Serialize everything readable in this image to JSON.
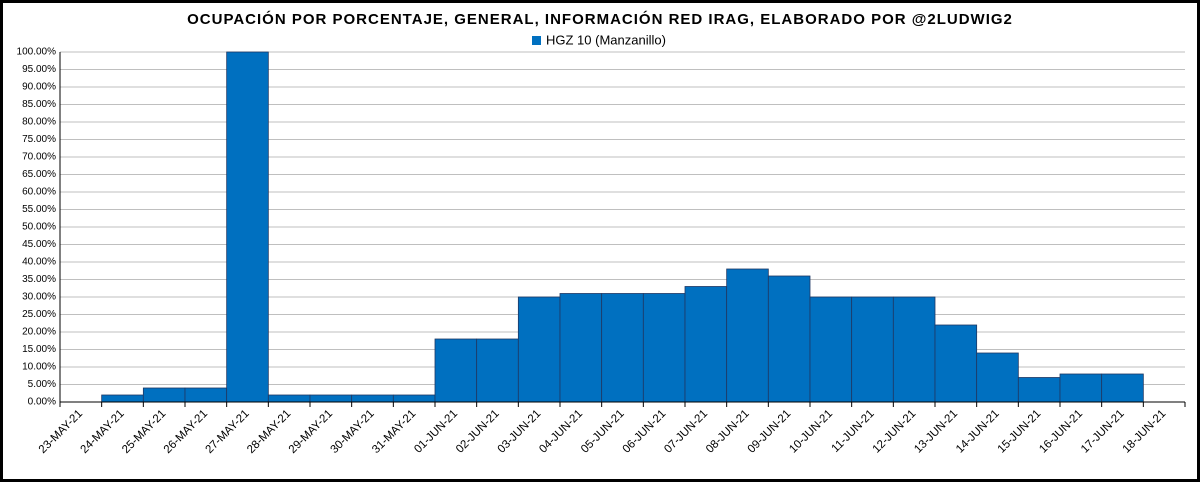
{
  "chart_data": {
    "type": "bar",
    "title": "OCUPACIÓN POR PORCENTAJE, GENERAL, INFORMACIÓN RED IRAG, ELABORADO POR @2LUDWIG2",
    "categories": [
      "23-MAY-21",
      "24-MAY-21",
      "25-MAY-21",
      "26-MAY-21",
      "27-MAY-21",
      "28-MAY-21",
      "29-MAY-21",
      "30-MAY-21",
      "31-MAY-21",
      "01-JUN-21",
      "02-JUN-21",
      "03-JUN-21",
      "04-JUN-21",
      "05-JUN-21",
      "06-JUN-21",
      "07-JUN-21",
      "08-JUN-21",
      "09-JUN-21",
      "10-JUN-21",
      "11-JUN-21",
      "12-JUN-21",
      "13-JUN-21",
      "14-JUN-21",
      "15-JUN-21",
      "16-JUN-21",
      "17-JUN-21",
      "18-JUN-21"
    ],
    "series": [
      {
        "name": "HGZ 10 (Manzanillo)",
        "color": "#0070c0",
        "values": [
          0,
          2,
          4,
          4,
          100,
          2,
          2,
          2,
          2,
          18,
          18,
          30,
          31,
          31,
          31,
          33,
          38,
          36,
          30,
          30,
          30,
          22,
          14,
          7,
          8,
          8,
          0
        ]
      }
    ],
    "ylim": [
      0,
      100
    ],
    "yticks": [
      {
        "value": 0,
        "label": "0.00%"
      },
      {
        "value": 5,
        "label": "5.00%"
      },
      {
        "value": 10,
        "label": "10.00%"
      },
      {
        "value": 15,
        "label": "15.00%"
      },
      {
        "value": 20,
        "label": "20.00%"
      },
      {
        "value": 25,
        "label": "25.00%"
      },
      {
        "value": 30,
        "label": "30.00%"
      },
      {
        "value": 35,
        "label": "35.00%"
      },
      {
        "value": 40,
        "label": "40.00%"
      },
      {
        "value": 45,
        "label": "45.00%"
      },
      {
        "value": 50,
        "label": "50.00%"
      },
      {
        "value": 55,
        "label": "55.00%"
      },
      {
        "value": 60,
        "label": "60.00%"
      },
      {
        "value": 65,
        "label": "65.00%"
      },
      {
        "value": 70,
        "label": "70.00%"
      },
      {
        "value": 75,
        "label": "75.00%"
      },
      {
        "value": 80,
        "label": "80.00%"
      },
      {
        "value": 85,
        "label": "85.00%"
      },
      {
        "value": 90,
        "label": "90.00%"
      },
      {
        "value": 95,
        "label": "95.00%"
      },
      {
        "value": 100,
        "label": "100.00%"
      }
    ],
    "grid": true
  }
}
